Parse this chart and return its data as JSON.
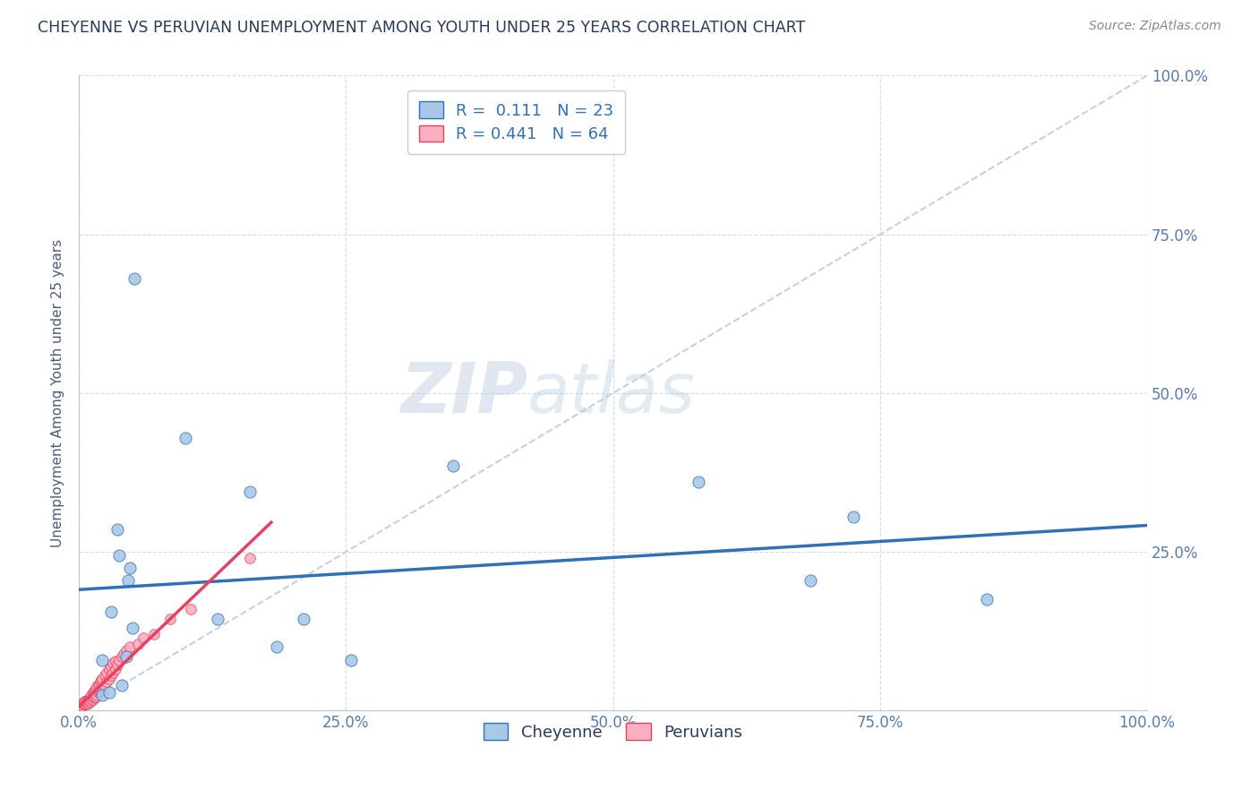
{
  "title": "CHEYENNE VS PERUVIAN UNEMPLOYMENT AMONG YOUTH UNDER 25 YEARS CORRELATION CHART",
  "source": "Source: ZipAtlas.com",
  "ylabel": "Unemployment Among Youth under 25 years",
  "xlabel": "",
  "watermark_zip": "ZIP",
  "watermark_atlas": "atlas",
  "cheyenne_R": 0.111,
  "cheyenne_N": 23,
  "peruvian_R": 0.441,
  "peruvian_N": 64,
  "cheyenne_color": "#a8c8e8",
  "peruvian_color": "#f8b0c0",
  "cheyenne_line_color": "#3070b8",
  "peruvian_line_color": "#e84060",
  "diagonal_color": "#c8d0dc",
  "cheyenne_x": [
    0.022,
    0.022,
    0.028,
    0.03,
    0.036,
    0.038,
    0.04,
    0.044,
    0.046,
    0.048,
    0.05,
    0.052,
    0.1,
    0.13,
    0.16,
    0.185,
    0.21,
    0.255,
    0.35,
    0.58,
    0.685,
    0.725,
    0.85
  ],
  "cheyenne_y": [
    0.025,
    0.08,
    0.028,
    0.155,
    0.285,
    0.245,
    0.04,
    0.085,
    0.205,
    0.225,
    0.13,
    0.68,
    0.43,
    0.145,
    0.345,
    0.1,
    0.145,
    0.08,
    0.385,
    0.36,
    0.205,
    0.305,
    0.175
  ],
  "peruvian_x": [
    0.001,
    0.002,
    0.003,
    0.004,
    0.005,
    0.005,
    0.006,
    0.006,
    0.007,
    0.007,
    0.008,
    0.008,
    0.009,
    0.009,
    0.01,
    0.01,
    0.011,
    0.011,
    0.012,
    0.012,
    0.013,
    0.013,
    0.014,
    0.014,
    0.015,
    0.015,
    0.016,
    0.016,
    0.017,
    0.017,
    0.018,
    0.018,
    0.019,
    0.019,
    0.02,
    0.02,
    0.021,
    0.021,
    0.022,
    0.022,
    0.024,
    0.024,
    0.026,
    0.026,
    0.028,
    0.028,
    0.03,
    0.03,
    0.032,
    0.032,
    0.034,
    0.034,
    0.036,
    0.038,
    0.04,
    0.042,
    0.044,
    0.048,
    0.055,
    0.06,
    0.07,
    0.085,
    0.105,
    0.16
  ],
  "peruvian_y": [
    0.008,
    0.01,
    0.008,
    0.01,
    0.01,
    0.015,
    0.01,
    0.015,
    0.01,
    0.015,
    0.012,
    0.018,
    0.012,
    0.018,
    0.015,
    0.02,
    0.015,
    0.022,
    0.018,
    0.025,
    0.018,
    0.028,
    0.02,
    0.03,
    0.022,
    0.032,
    0.022,
    0.035,
    0.025,
    0.038,
    0.028,
    0.04,
    0.03,
    0.042,
    0.032,
    0.045,
    0.035,
    0.048,
    0.038,
    0.05,
    0.04,
    0.055,
    0.045,
    0.06,
    0.05,
    0.065,
    0.055,
    0.07,
    0.06,
    0.075,
    0.065,
    0.078,
    0.072,
    0.08,
    0.085,
    0.09,
    0.095,
    0.1,
    0.105,
    0.115,
    0.12,
    0.145,
    0.16,
    0.24
  ],
  "xlim": [
    0.0,
    1.0
  ],
  "ylim": [
    0.0,
    1.0
  ],
  "xticks": [
    0.0,
    0.25,
    0.5,
    0.75,
    1.0
  ],
  "yticks": [
    0.25,
    0.5,
    0.75,
    1.0
  ],
  "xticklabels": [
    "0.0%",
    "25.0%",
    "50.0%",
    "75.0%",
    "100.0%"
  ],
  "yticklabels_right": [
    "25.0%",
    "50.0%",
    "75.0%",
    "100.0%"
  ],
  "background_color": "#ffffff",
  "grid_color": "#d4dae8",
  "title_color": "#2a3a5a",
  "label_color": "#4a5a7a",
  "tick_color": "#5a7aaa"
}
